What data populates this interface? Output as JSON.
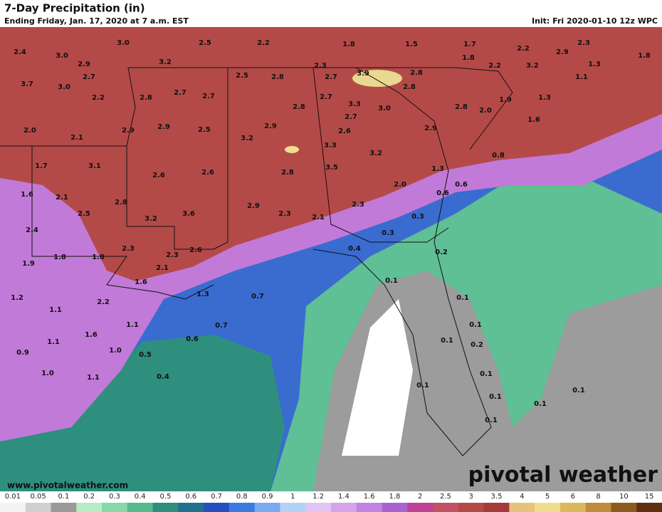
{
  "header": {
    "title": "7-Day Precipitation (in)",
    "subtitle": "Ending Friday, Jan. 17, 2020 at 7 a.m. EST",
    "init": "Init: Fri 2020-01-10 12z WPC"
  },
  "labels": [
    "2.4",
    "3.0",
    "3.0",
    "2.5",
    "2.2",
    "1.8",
    "1.5",
    "1.7",
    "2.2",
    "2.9",
    "2.3",
    "1.8",
    "2.9",
    "3.2",
    "2.3",
    "1.8",
    "2.2",
    "3.2",
    "1.1",
    "1.3",
    "3.7",
    "2.7",
    "3.0",
    "2.5",
    "2.8",
    "2.7",
    "3.9",
    "2.8",
    "2.8",
    "2.2",
    "2.8",
    "2.7",
    "2.7",
    "2.7",
    "3.3",
    "3.0",
    "2.8",
    "2.8",
    "2.0",
    "1.9",
    "1.3",
    "2.0",
    "2.1",
    "2.9",
    "2.9",
    "2.5",
    "3.2",
    "2.9",
    "2.7",
    "2.6",
    "2.9",
    "1.6",
    "3.3",
    "3.2",
    "0.8",
    "1.7",
    "3.1",
    "2.6",
    "2.6",
    "2.8",
    "3.5",
    "1.3",
    "1.6",
    "2.1",
    "2.8",
    "2.0",
    "0.6",
    "0.6",
    "2.9",
    "2.3",
    "2.3",
    "2.5",
    "3.2",
    "3.6",
    "2.1",
    "0.3",
    "2.4",
    "0.3",
    "2.3",
    "2.6",
    "0.4",
    "0.2",
    "1.8",
    "1.8",
    "2.3",
    "1.9",
    "2.1",
    "1.6",
    "0.1",
    "1.3",
    "0.7",
    "1.2",
    "2.2",
    "0.1",
    "1.1",
    "1.1",
    "0.7",
    "0.1",
    "1.6",
    "1.1",
    "0.6",
    "0.1",
    "0.2",
    "0.9",
    "1.0",
    "0.5",
    "1.0",
    "1.1",
    "0.4",
    "0.1",
    "0.1",
    "0.1",
    "0.1",
    "0.1",
    "0.1"
  ],
  "footer": {
    "url": "www.pivotalweather.com",
    "brand": "pivotal weather"
  },
  "colorbar": {
    "ticks": [
      0.01,
      0.05,
      0.1,
      0.2,
      0.3,
      0.4,
      0.5,
      0.6,
      0.7,
      0.8,
      0.9,
      1,
      1.2,
      1.4,
      1.6,
      1.8,
      2,
      2.5,
      3,
      3.5,
      4,
      5,
      6,
      8,
      10,
      15
    ],
    "colors": [
      "#f4f4f4",
      "#d0d0d0",
      "#9a9a9a",
      "#b8ecc4",
      "#86d8a6",
      "#56ba8e",
      "#2e8e7c",
      "#22708e",
      "#2450c0",
      "#3c7ae0",
      "#7aaaf0",
      "#b4d2f8",
      "#e4c4f2",
      "#d4a4ea",
      "#c284e2",
      "#aa62d2",
      "#c04494",
      "#c05262",
      "#b44a48",
      "#a43a3a",
      "#e6c27c",
      "#f0de8e",
      "#dcb85c",
      "#be8c3c",
      "#8c5c1e",
      "#5e3010"
    ]
  }
}
